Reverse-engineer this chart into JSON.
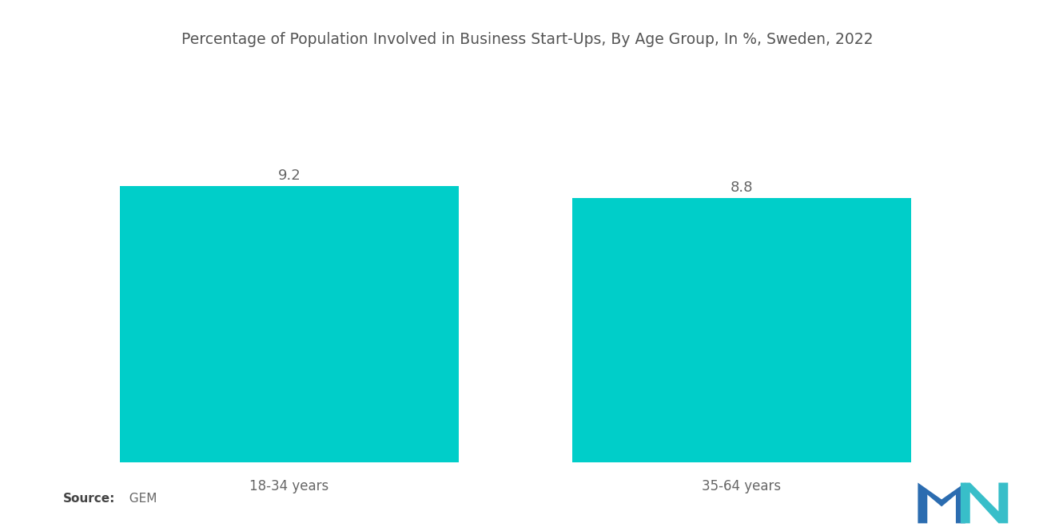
{
  "title": "Percentage of Population Involved in Business Start-Ups, By Age Group, In %, Sweden, 2022",
  "categories": [
    "18-34 years",
    "35-64 years"
  ],
  "values": [
    9.2,
    8.8
  ],
  "bar_color": "#00CEC9",
  "background_color": "#ffffff",
  "title_fontsize": 13.5,
  "label_fontsize": 12,
  "value_fontsize": 13,
  "source_label": "Source:",
  "source_value": "  GEM",
  "source_fontsize": 11,
  "ylim": [
    0,
    11.5
  ],
  "x_positions": [
    1,
    3
  ],
  "bar_width": 1.5,
  "xlim": [
    0.0,
    4.2
  ]
}
